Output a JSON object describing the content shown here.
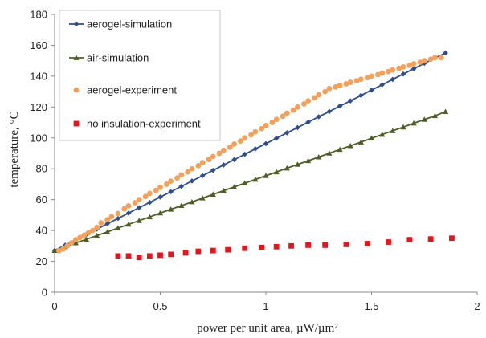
{
  "chart_data": {
    "type": "line",
    "xlabel": "power per unit area, µW/µm²",
    "ylabel": "temperature, °C",
    "xlim": [
      0,
      2
    ],
    "ylim": [
      0,
      180
    ],
    "x_ticks": [
      "0",
      "0.5",
      "1",
      "1.5",
      "2"
    ],
    "y_ticks": [
      "0",
      "20",
      "40",
      "60",
      "80",
      "100",
      "120",
      "140",
      "160",
      "180"
    ],
    "grid": false,
    "legend_placement": "top-left",
    "series": [
      {
        "name": "aerogel-simulation",
        "type": "line",
        "marker": "diamond",
        "color": "#2e4f8c",
        "x": [
          0,
          0.05,
          0.1,
          0.15,
          0.2,
          0.25,
          0.3,
          0.35,
          0.4,
          0.45,
          0.5,
          0.55,
          0.6,
          0.65,
          0.7,
          0.75,
          0.8,
          0.85,
          0.9,
          0.95,
          1.0,
          1.05,
          1.1,
          1.15,
          1.2,
          1.25,
          1.3,
          1.35,
          1.4,
          1.45,
          1.5,
          1.55,
          1.6,
          1.65,
          1.7,
          1.75,
          1.8,
          1.85
        ],
        "y": [
          27,
          30.5,
          33.9,
          37.4,
          40.9,
          44.4,
          47.8,
          51.3,
          54.8,
          58.2,
          61.7,
          65.1,
          68.6,
          72.1,
          75.5,
          79.0,
          82.5,
          85.9,
          89.4,
          92.9,
          96.3,
          99.8,
          103.3,
          106.7,
          110.2,
          113.7,
          117.1,
          120.6,
          124.0,
          127.5,
          131.0,
          134.4,
          137.9,
          141.4,
          144.8,
          148.3,
          151.8,
          155
        ]
      },
      {
        "name": "air-simulation",
        "type": "line",
        "marker": "triangle",
        "color": "#4d5e25",
        "x": [
          0,
          0.05,
          0.1,
          0.15,
          0.2,
          0.25,
          0.3,
          0.35,
          0.4,
          0.45,
          0.5,
          0.55,
          0.6,
          0.65,
          0.7,
          0.75,
          0.8,
          0.85,
          0.9,
          0.95,
          1.0,
          1.05,
          1.1,
          1.15,
          1.2,
          1.25,
          1.3,
          1.35,
          1.4,
          1.45,
          1.5,
          1.55,
          1.6,
          1.65,
          1.7,
          1.75,
          1.8,
          1.85
        ],
        "y": [
          27,
          29.4,
          31.9,
          34.3,
          36.7,
          39.1,
          41.6,
          44.0,
          46.4,
          48.8,
          51.3,
          53.7,
          56.1,
          58.5,
          61.0,
          63.4,
          65.8,
          68.2,
          70.7,
          73.1,
          75.5,
          77.9,
          80.4,
          82.8,
          85.2,
          87.6,
          90.1,
          92.5,
          94.9,
          97.3,
          99.8,
          102.2,
          104.6,
          107.0,
          109.5,
          111.9,
          114.3,
          117
        ]
      },
      {
        "name": "aerogel-experiment",
        "type": "scatter",
        "marker": "circle",
        "color": "#f4a05a",
        "x": [
          0.02,
          0.04,
          0.06,
          0.08,
          0.1,
          0.12,
          0.14,
          0.16,
          0.18,
          0.2,
          0.22,
          0.25,
          0.27,
          0.3,
          0.33,
          0.35,
          0.38,
          0.4,
          0.43,
          0.45,
          0.48,
          0.5,
          0.53,
          0.55,
          0.58,
          0.6,
          0.63,
          0.65,
          0.68,
          0.7,
          0.73,
          0.75,
          0.78,
          0.8,
          0.83,
          0.85,
          0.88,
          0.9,
          0.93,
          0.95,
          0.98,
          1.0,
          1.03,
          1.05,
          1.08,
          1.1,
          1.13,
          1.15,
          1.18,
          1.2,
          1.23,
          1.25,
          1.28,
          1.3,
          1.33,
          1.35,
          1.38,
          1.4,
          1.43,
          1.45,
          1.48,
          1.5,
          1.53,
          1.55,
          1.58,
          1.6,
          1.63,
          1.65,
          1.68,
          1.7,
          1.73,
          1.75,
          1.78,
          1.8,
          1.83
        ],
        "y": [
          27,
          28,
          30,
          32,
          34,
          35.5,
          37,
          38.5,
          40,
          42,
          45,
          47,
          49,
          51,
          54,
          56,
          58,
          60,
          62,
          64,
          66,
          68,
          70,
          72,
          74,
          76,
          78,
          80,
          82,
          84,
          86,
          88,
          90,
          92,
          94,
          96,
          98,
          100,
          102,
          104,
          106,
          108,
          110,
          112,
          114,
          116,
          118,
          120,
          122,
          124,
          126,
          128,
          130,
          132,
          133,
          134,
          135,
          136,
          137,
          138,
          139,
          140,
          141,
          142,
          143,
          144,
          145,
          146,
          147,
          148,
          149,
          150,
          151,
          152,
          152
        ]
      },
      {
        "name": "no insulation-experiment",
        "type": "scatter",
        "marker": "square",
        "color": "#e8141c",
        "x": [
          0.3,
          0.35,
          0.4,
          0.45,
          0.5,
          0.55,
          0.62,
          0.68,
          0.75,
          0.82,
          0.9,
          0.98,
          1.05,
          1.12,
          1.2,
          1.28,
          1.38,
          1.48,
          1.58,
          1.68,
          1.78,
          1.88
        ],
        "y": [
          23.5,
          23.5,
          22.5,
          23.5,
          24,
          24.5,
          25.5,
          26.5,
          27,
          27.5,
          28.5,
          29,
          29.5,
          30,
          30.5,
          30.5,
          31,
          31.5,
          32.5,
          34,
          34.5,
          35
        ]
      }
    ]
  }
}
